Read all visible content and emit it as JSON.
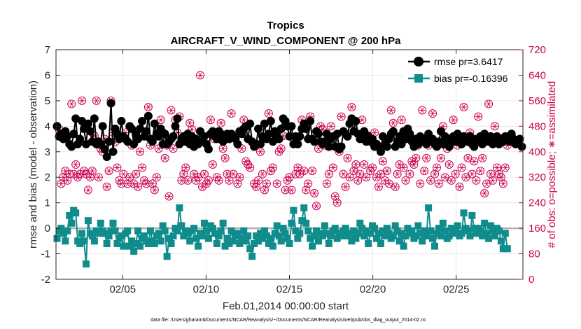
{
  "chart_data": {
    "type": "line",
    "title": "Tropics",
    "subtitle": "AIRCRAFT_V_WIND_COMPONENT @ 200 hPa",
    "xlabel": "Feb.01,2014 00:00:00 start",
    "ylabel": "rmse and bias (model - observation)",
    "ylabel_right": "# of obs: o=possible; ∗=assimilated",
    "footnote": "data file: /Users/gharamti/Documents/NCAR/Reanalysis/~/Documents/NCAR/Reanalysis/webpub/obs_diag_output_2014-02.nc",
    "xlim": [
      1.0,
      29.0
    ],
    "ylim": [
      -2,
      7
    ],
    "ylim_right": [
      0,
      720
    ],
    "grid": true,
    "legend_position": "top-right",
    "xticks": [
      5,
      10,
      15,
      20,
      25
    ],
    "xtick_labels": [
      "02/05",
      "02/10",
      "02/15",
      "02/20",
      "02/25"
    ],
    "yticks": [
      -2,
      -1,
      0,
      1,
      2,
      3,
      4,
      5,
      6,
      7
    ],
    "yticks_right": [
      0,
      80,
      160,
      240,
      320,
      400,
      480,
      560,
      640,
      720
    ],
    "colors": {
      "rmse": "#000000",
      "bias": "#108c8c",
      "obs": "#cc0050",
      "zero_line": "#b0b0b0",
      "grid": "#e6e6e6"
    },
    "series": [
      {
        "name": "rmse pr=3.6417",
        "marker": "circle",
        "values": [
          4.0,
          3.6,
          3.7,
          3.5,
          3.8,
          3.6,
          3.3,
          3.2,
          3.7,
          4.3,
          3.3,
          3.5,
          4.2,
          3.9,
          3.3,
          4.1,
          3.8,
          3.4,
          4.3,
          3.3,
          3.4,
          3.3,
          4.0,
          3.1,
          2.8,
          3.4,
          4.9,
          3.0,
          3.9,
          3.7,
          3.5,
          4.2,
          3.6,
          3.5,
          3.4,
          4.0,
          3.9,
          3.3,
          3.7,
          3.5,
          3.9,
          4.2,
          3.6,
          3.8,
          4.4,
          3.5,
          3.4,
          4.1,
          3.7,
          3.6,
          3.9,
          3.3,
          3.7,
          3.3,
          3.4,
          3.5,
          3.6,
          4.0,
          4.3,
          3.3,
          3.5,
          3.6,
          3.4,
          3.7,
          3.3,
          3.6,
          3.2,
          3.5,
          3.3,
          3.8,
          3.4,
          3.6,
          3.3,
          3.1,
          3.7,
          3.8,
          3.6,
          3.5,
          3.8,
          3.7,
          3.4,
          3.6,
          3.7,
          3.5,
          3.7,
          3.6,
          3.5,
          3.3,
          3.8,
          3.7,
          3.9,
          4.0,
          3.5,
          4.1,
          3.4,
          3.2,
          3.3,
          3.9,
          3.3,
          3.6,
          4.1,
          3.5,
          3.7,
          4.2,
          3.4,
          3.8,
          3.6,
          3.5,
          3.9,
          4.3,
          4.2,
          4.0,
          3.6,
          4.0,
          3.3,
          3.6,
          3.3,
          3.6,
          3.9,
          4.1,
          3.9,
          3.5,
          4.2,
          3.5,
          3.4,
          3.8,
          3.7,
          3.4,
          3.3,
          3.4,
          3.7,
          3.2,
          3.5,
          3.6,
          3.2,
          3.7,
          3.1,
          3.2,
          3.8,
          3.7,
          3.6,
          4.1,
          4.3,
          3.8,
          4.2,
          3.7,
          3.5,
          3.6,
          3.8,
          3.4,
          3.6,
          3.4,
          3.5,
          3.2,
          3.3,
          3.2,
          3.0,
          3.6,
          3.3,
          3.2,
          3.5,
          3.7,
          3.8,
          3.2,
          3.4,
          3.6,
          3.3,
          3.8,
          3.5,
          3.9,
          3.7,
          3.4,
          3.2,
          3.5,
          3.3,
          3.6,
          3.4,
          3.5,
          3.3,
          3.7,
          3.4,
          3.5,
          3.3,
          3.2,
          3.4,
          3.8,
          3.3,
          3.6,
          3.3,
          3.2,
          3.5,
          3.6,
          3.4,
          3.7,
          3.5,
          3.3,
          3.6,
          3.5,
          3.4,
          3.6,
          3.3,
          3.2,
          3.5,
          3.4,
          3.6,
          3.3,
          3.7,
          3.5,
          3.4,
          3.6,
          3.3,
          3.5,
          3.6,
          3.3,
          3.5,
          3.4,
          3.6,
          3.5,
          3.4,
          3.7,
          3.5,
          3.3,
          3.4,
          3.5,
          3.2
        ]
      },
      {
        "name": "bias pr=-0.16396",
        "marker": "square",
        "values": [
          -0.4,
          -0.1,
          0.0,
          -0.2,
          -0.5,
          -0.1,
          0.5,
          0.2,
          0.7,
          0.6,
          -0.5,
          -0.6,
          -0.2,
          -0.5,
          -1.4,
          0.3,
          -0.2,
          -0.3,
          -0.5,
          -0.1,
          -0.2,
          0.2,
          -0.1,
          -0.2,
          -0.6,
          -0.3,
          -0.1,
          0.2,
          -0.1,
          -0.6,
          -0.4,
          -0.3,
          -0.7,
          -0.2,
          -0.1,
          -0.7,
          -0.5,
          -0.9,
          -0.6,
          -0.1,
          -0.7,
          -0.4,
          -0.3,
          -0.5,
          -0.6,
          -0.1,
          -0.5,
          -0.6,
          -0.3,
          -0.2,
          -0.5,
          0.1,
          -0.1,
          -1.1,
          -0.4,
          -0.6,
          -0.3,
          0.0,
          -0.1,
          0.8,
          0.1,
          -0.3,
          -0.1,
          -0.2,
          -0.5,
          -0.1,
          0.0,
          -0.4,
          -0.7,
          -0.2,
          -0.3,
          0.2,
          -0.1,
          -0.4,
          0.1,
          0.0,
          -0.2,
          -0.6,
          -0.3,
          -0.1,
          0.2,
          -0.7,
          -0.4,
          -0.6,
          -0.1,
          -0.5,
          -0.3,
          -0.2,
          -0.6,
          -0.4,
          -0.1,
          -0.5,
          -0.3,
          -0.8,
          -1.1,
          -0.6,
          -0.3,
          -0.5,
          -0.2,
          -0.4,
          -0.1,
          -0.3,
          -0.6,
          -0.4,
          -0.7,
          -0.2,
          0.1,
          -0.3,
          -0.5,
          0.0,
          -0.2,
          -0.4,
          -0.6,
          0.2,
          0.7,
          -0.1,
          -0.4,
          -0.2,
          0.3,
          0.8,
          0.2,
          -0.1,
          -0.4,
          -0.7,
          -0.3,
          -0.1,
          -0.5,
          -0.2,
          -0.3,
          0.1,
          -0.2,
          -0.6,
          -0.3,
          -0.1,
          0.0,
          -0.4,
          -0.2,
          -0.3,
          -0.1,
          0.0,
          -0.3,
          -0.2,
          -0.5,
          -0.1,
          -0.4,
          -0.2,
          0.2,
          0.0,
          -0.3,
          -0.1,
          -0.6,
          -0.2,
          0.1,
          0.0,
          -0.4,
          -0.2,
          -0.6,
          -0.1,
          -0.3,
          0.0,
          -0.2,
          -0.4,
          -0.3,
          0.1,
          -0.1,
          -0.5,
          -0.2,
          -0.7,
          -0.3,
          0.0,
          -0.2,
          -0.1,
          -0.4,
          -0.3,
          0.1,
          -0.2,
          -0.5,
          -0.1,
          -0.3,
          0.8,
          -0.1,
          -0.4,
          -0.7,
          -0.2,
          0.0,
          -0.3,
          0.2,
          -0.1,
          -0.4,
          -0.3,
          0.0,
          -0.2,
          -0.1,
          0.1,
          -0.3,
          -0.2,
          0.6,
          0.0,
          -0.1,
          -0.3,
          0.5,
          0.0,
          -0.2,
          0.0,
          -0.1,
          -0.3,
          0.2,
          -0.2,
          -0.4,
          0.1,
          -0.1,
          -0.3,
          0.0,
          -0.1,
          -0.5,
          -0.8,
          -0.2,
          -0.8
        ]
      },
      {
        "name": "# of obs",
        "axis": "right",
        "marker": "circle-star",
        "values": [
          480,
          470,
          300,
          320,
          340,
          310,
          330,
          550,
          330,
          360,
          320,
          330,
          560,
          340,
          330,
          280,
          320,
          340,
          450,
          560,
          320,
          410,
          400,
          440,
          290,
          340,
          560,
          460,
          430,
          350,
          310,
          300,
          330,
          460,
          300,
          320,
          420,
          300,
          330,
          290,
          400,
          350,
          310,
          300,
          540,
          420,
          300,
          280,
          320,
          410,
          500,
          460,
          380,
          420,
          260,
          530,
          410,
          500,
          460,
          510,
          310,
          330,
          350,
          310,
          490,
          470,
          330,
          310,
          320,
          640,
          290,
          330,
          300,
          310,
          500,
          360,
          440,
          320,
          310,
          490,
          410,
          380,
          330,
          310,
          520,
          330,
          450,
          300,
          320,
          410,
          500,
          370,
          360,
          350,
          430,
          300,
          290,
          310,
          400,
          330,
          280,
          300,
          520,
          340,
          350,
          460,
          300,
          400,
          410,
          450,
          280,
          310,
          320,
          280,
          440,
          330,
          350,
          330,
          500,
          340,
          280,
          300,
          510,
          340,
          270,
          230,
          410,
          480,
          470,
          420,
          300,
          330,
          480,
          350,
          260,
          240,
          400,
          510,
          330,
          290,
          380,
          320,
          540,
          340,
          360,
          310,
          330,
          500,
          360,
          320,
          450,
          340,
          350,
          460,
          320,
          290,
          330,
          370,
          310,
          340,
          300,
          530,
          490,
          290,
          330,
          360,
          500,
          350,
          310,
          450,
          330,
          370,
          360,
          380,
          420,
          300,
          530,
          340,
          380,
          420,
          310,
          520,
          330,
          350,
          300,
          380,
          480,
          320,
          410,
          360,
          310,
          500,
          330,
          420,
          290,
          350,
          540,
          320,
          380,
          460,
          330,
          370,
          310,
          510,
          340,
          380,
          270,
          300,
          550,
          330,
          310,
          480,
          350,
          330,
          320,
          300,
          350,
          420
        ]
      }
    ]
  }
}
